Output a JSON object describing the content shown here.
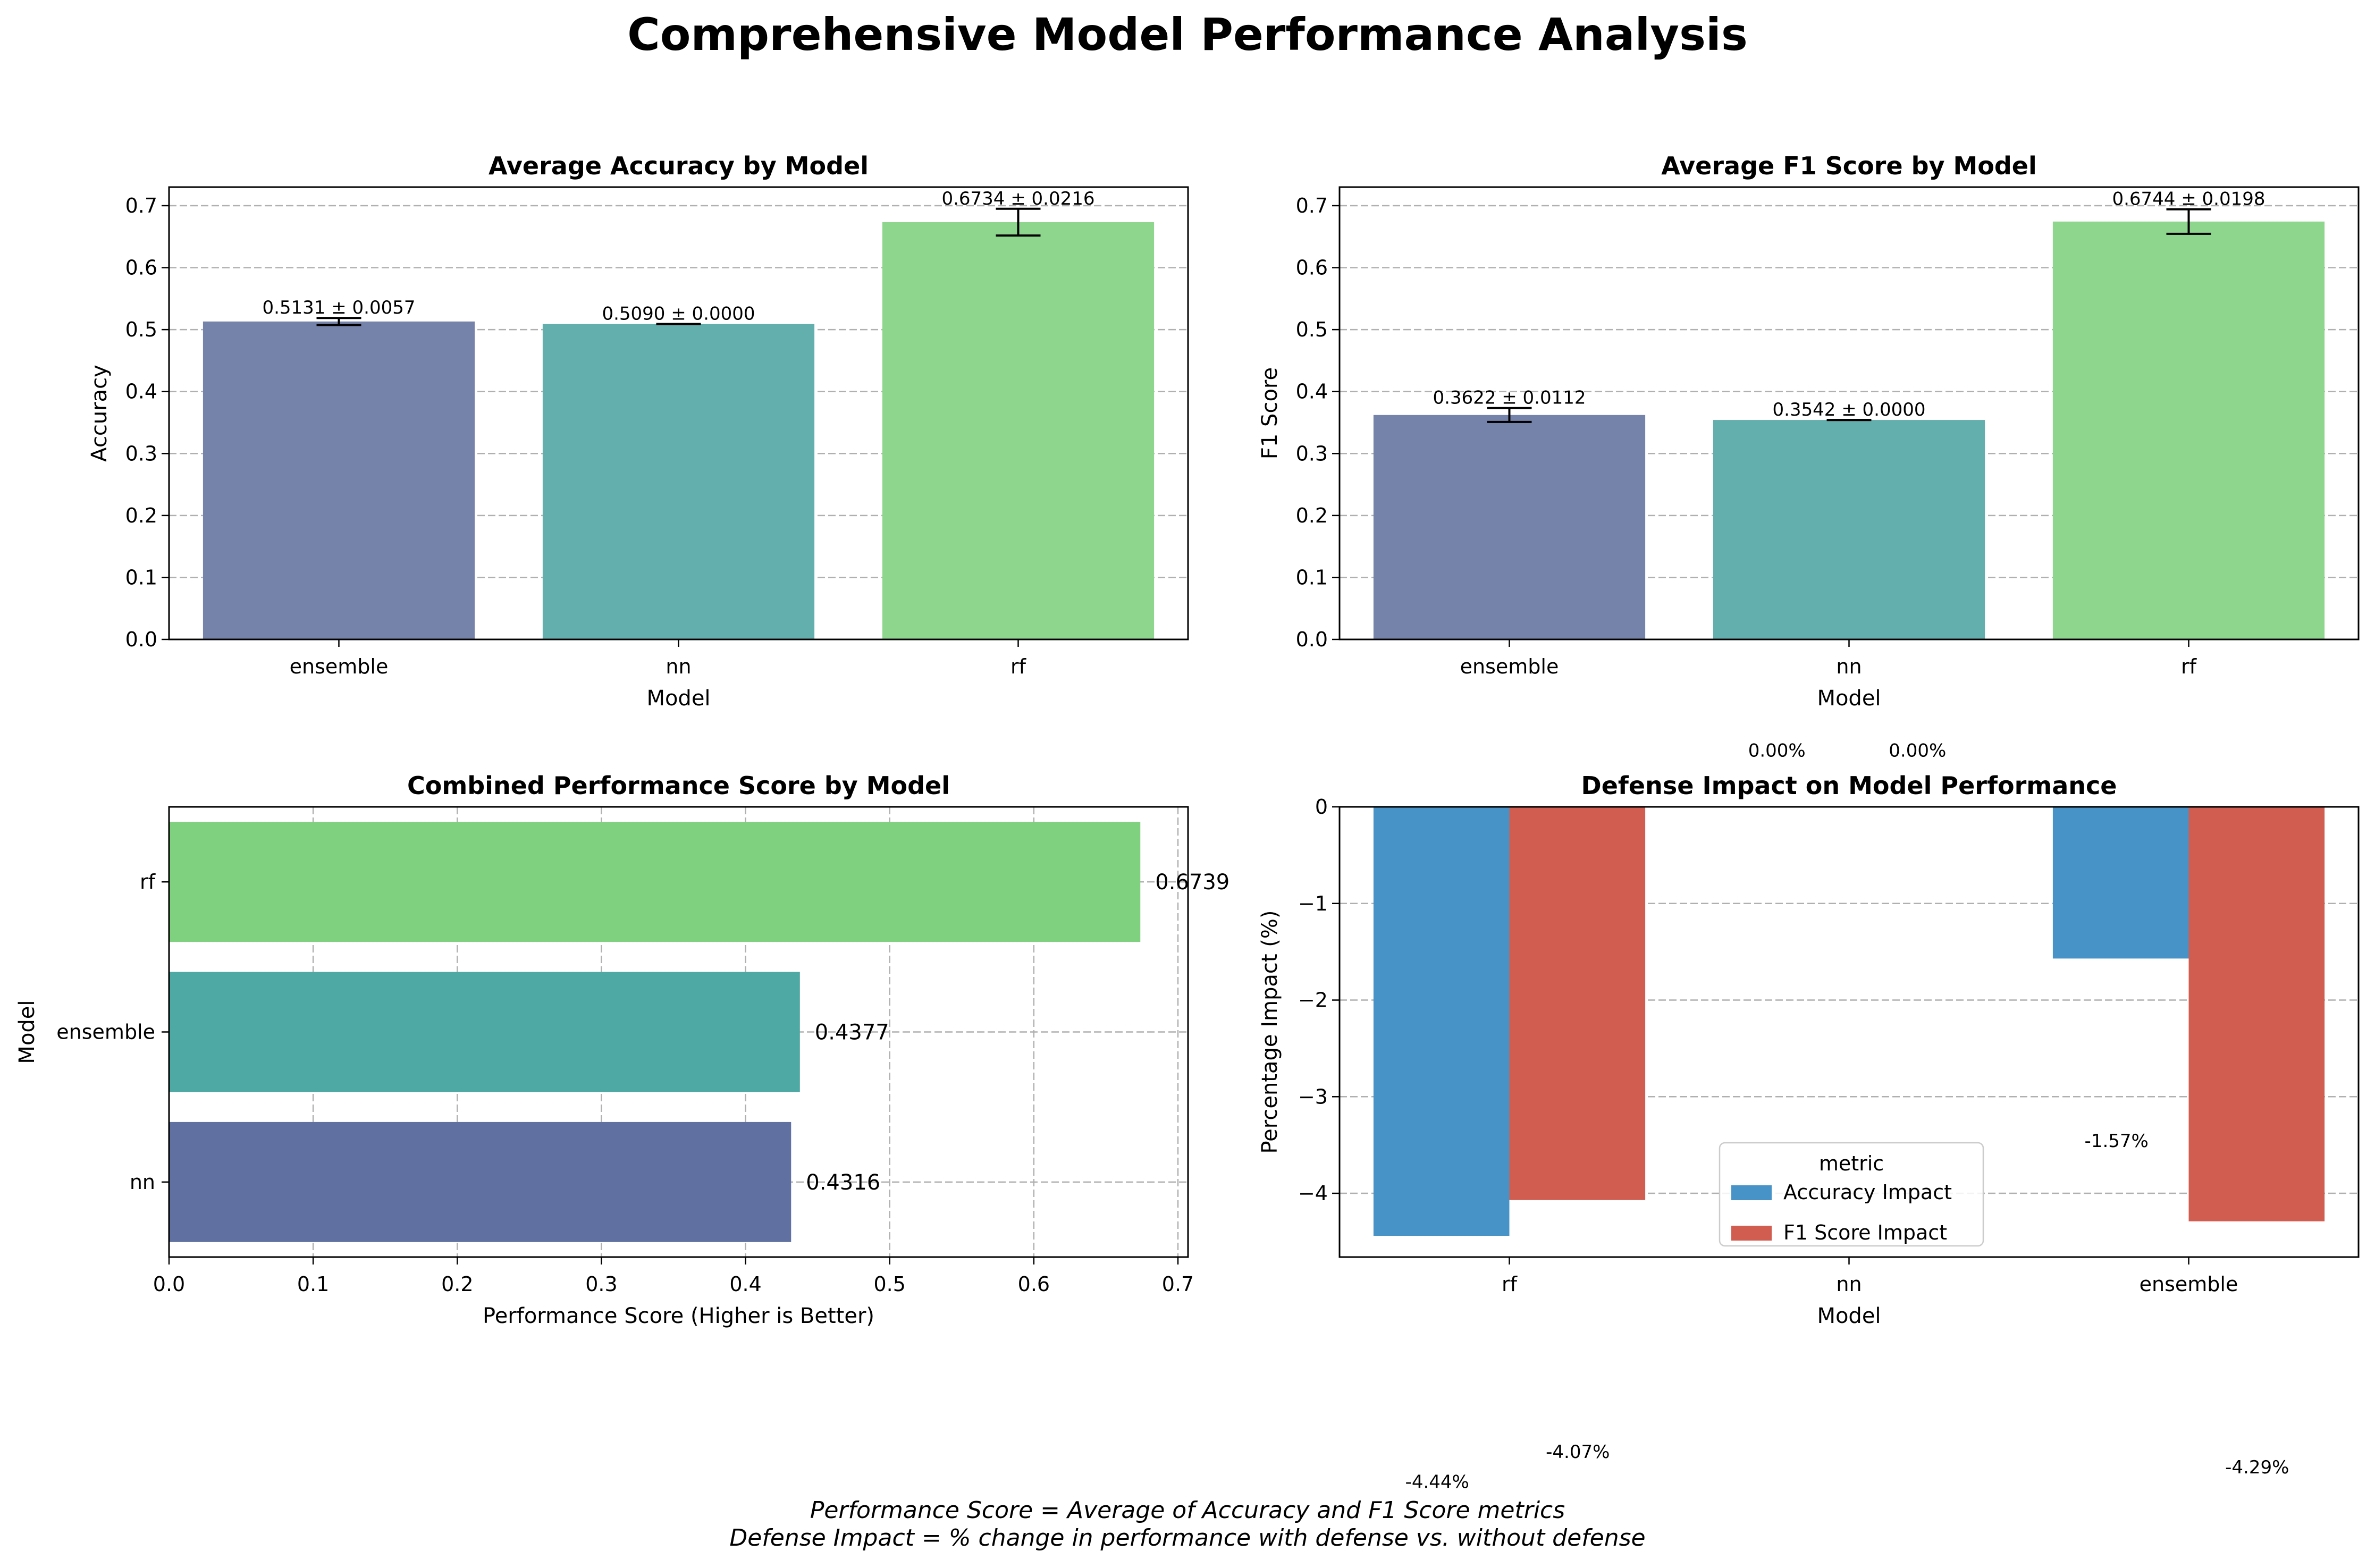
{
  "figure": {
    "title": "Comprehensive Model Performance Analysis",
    "footnote_1": "Performance Score = Average of Accuracy and F1 Score metrics",
    "footnote_2": "Defense Impact = % change in performance with defense vs. without defense"
  },
  "chart_data": [
    {
      "id": "accuracy",
      "type": "bar",
      "title": "Average Accuracy by Model",
      "xlabel": "Model",
      "ylabel": "Accuracy",
      "categories": [
        "ensemble",
        "nn",
        "rf"
      ],
      "values": [
        0.5131,
        0.509,
        0.6734
      ],
      "errors": [
        0.0057,
        0.0,
        0.0216
      ],
      "labels": [
        "0.5131 ± 0.0057",
        "0.5090 ± 0.0000",
        "0.6734 ± 0.0216"
      ],
      "colors": [
        "#7583ab",
        "#62afae",
        "#8ed68e"
      ],
      "ylim": [
        0,
        0.73
      ],
      "yticks": [
        "0.0",
        "0.1",
        "0.2",
        "0.3",
        "0.4",
        "0.5",
        "0.6",
        "0.7"
      ],
      "grid": "y"
    },
    {
      "id": "f1",
      "type": "bar",
      "title": "Average F1 Score by Model",
      "xlabel": "Model",
      "ylabel": "F1 Score",
      "categories": [
        "ensemble",
        "nn",
        "rf"
      ],
      "values": [
        0.3622,
        0.3542,
        0.6744
      ],
      "errors": [
        0.0112,
        0.0,
        0.0198
      ],
      "labels": [
        "0.3622 ± 0.0112",
        "0.3542 ± 0.0000",
        "0.6744 ± 0.0198"
      ],
      "colors": [
        "#7583ab",
        "#62afae",
        "#8ed68e"
      ],
      "ylim": [
        0,
        0.73
      ],
      "yticks": [
        "0.0",
        "0.1",
        "0.2",
        "0.3",
        "0.4",
        "0.5",
        "0.6",
        "0.7"
      ],
      "grid": "y"
    },
    {
      "id": "combined",
      "type": "bar",
      "orientation": "horizontal",
      "title": "Combined Performance Score by Model",
      "xlabel": "Performance Score (Higher is Better)",
      "ylabel": "Model",
      "categories": [
        "rf",
        "ensemble",
        "nn"
      ],
      "values": [
        0.6739,
        0.4377,
        0.4316
      ],
      "labels": [
        "0.6739",
        "0.4377",
        "0.4316"
      ],
      "colors": [
        "#7fd07f",
        "#4ea8a3",
        "#6070a0"
      ],
      "xlim": [
        0,
        0.707
      ],
      "xticks": [
        "0.0",
        "0.1",
        "0.2",
        "0.3",
        "0.4",
        "0.5",
        "0.6",
        "0.7"
      ],
      "grid": "both"
    },
    {
      "id": "defense",
      "type": "bar",
      "title": "Defense Impact on Model Performance",
      "xlabel": "Model",
      "ylabel": "Percentage Impact (%)",
      "categories": [
        "rf",
        "nn",
        "ensemble"
      ],
      "series": [
        {
          "name": "Accuracy Impact",
          "color": "#4793c8",
          "values": [
            -4.44,
            0.0,
            -1.57
          ],
          "labels": [
            "-4.44%",
            "0.00%",
            "-1.57%"
          ]
        },
        {
          "name": "F1 Score Impact",
          "color": "#d15c50",
          "values": [
            -4.07,
            0.0,
            -4.29
          ],
          "labels": [
            "-4.07%",
            "0.00%",
            "-4.29%"
          ]
        }
      ],
      "ylim": [
        -4.66,
        0
      ],
      "yticks": [
        "0",
        "−1",
        "−2",
        "−3",
        "−4"
      ],
      "legend": {
        "title": "metric",
        "placement": "lower center"
      },
      "grid": "y"
    }
  ]
}
